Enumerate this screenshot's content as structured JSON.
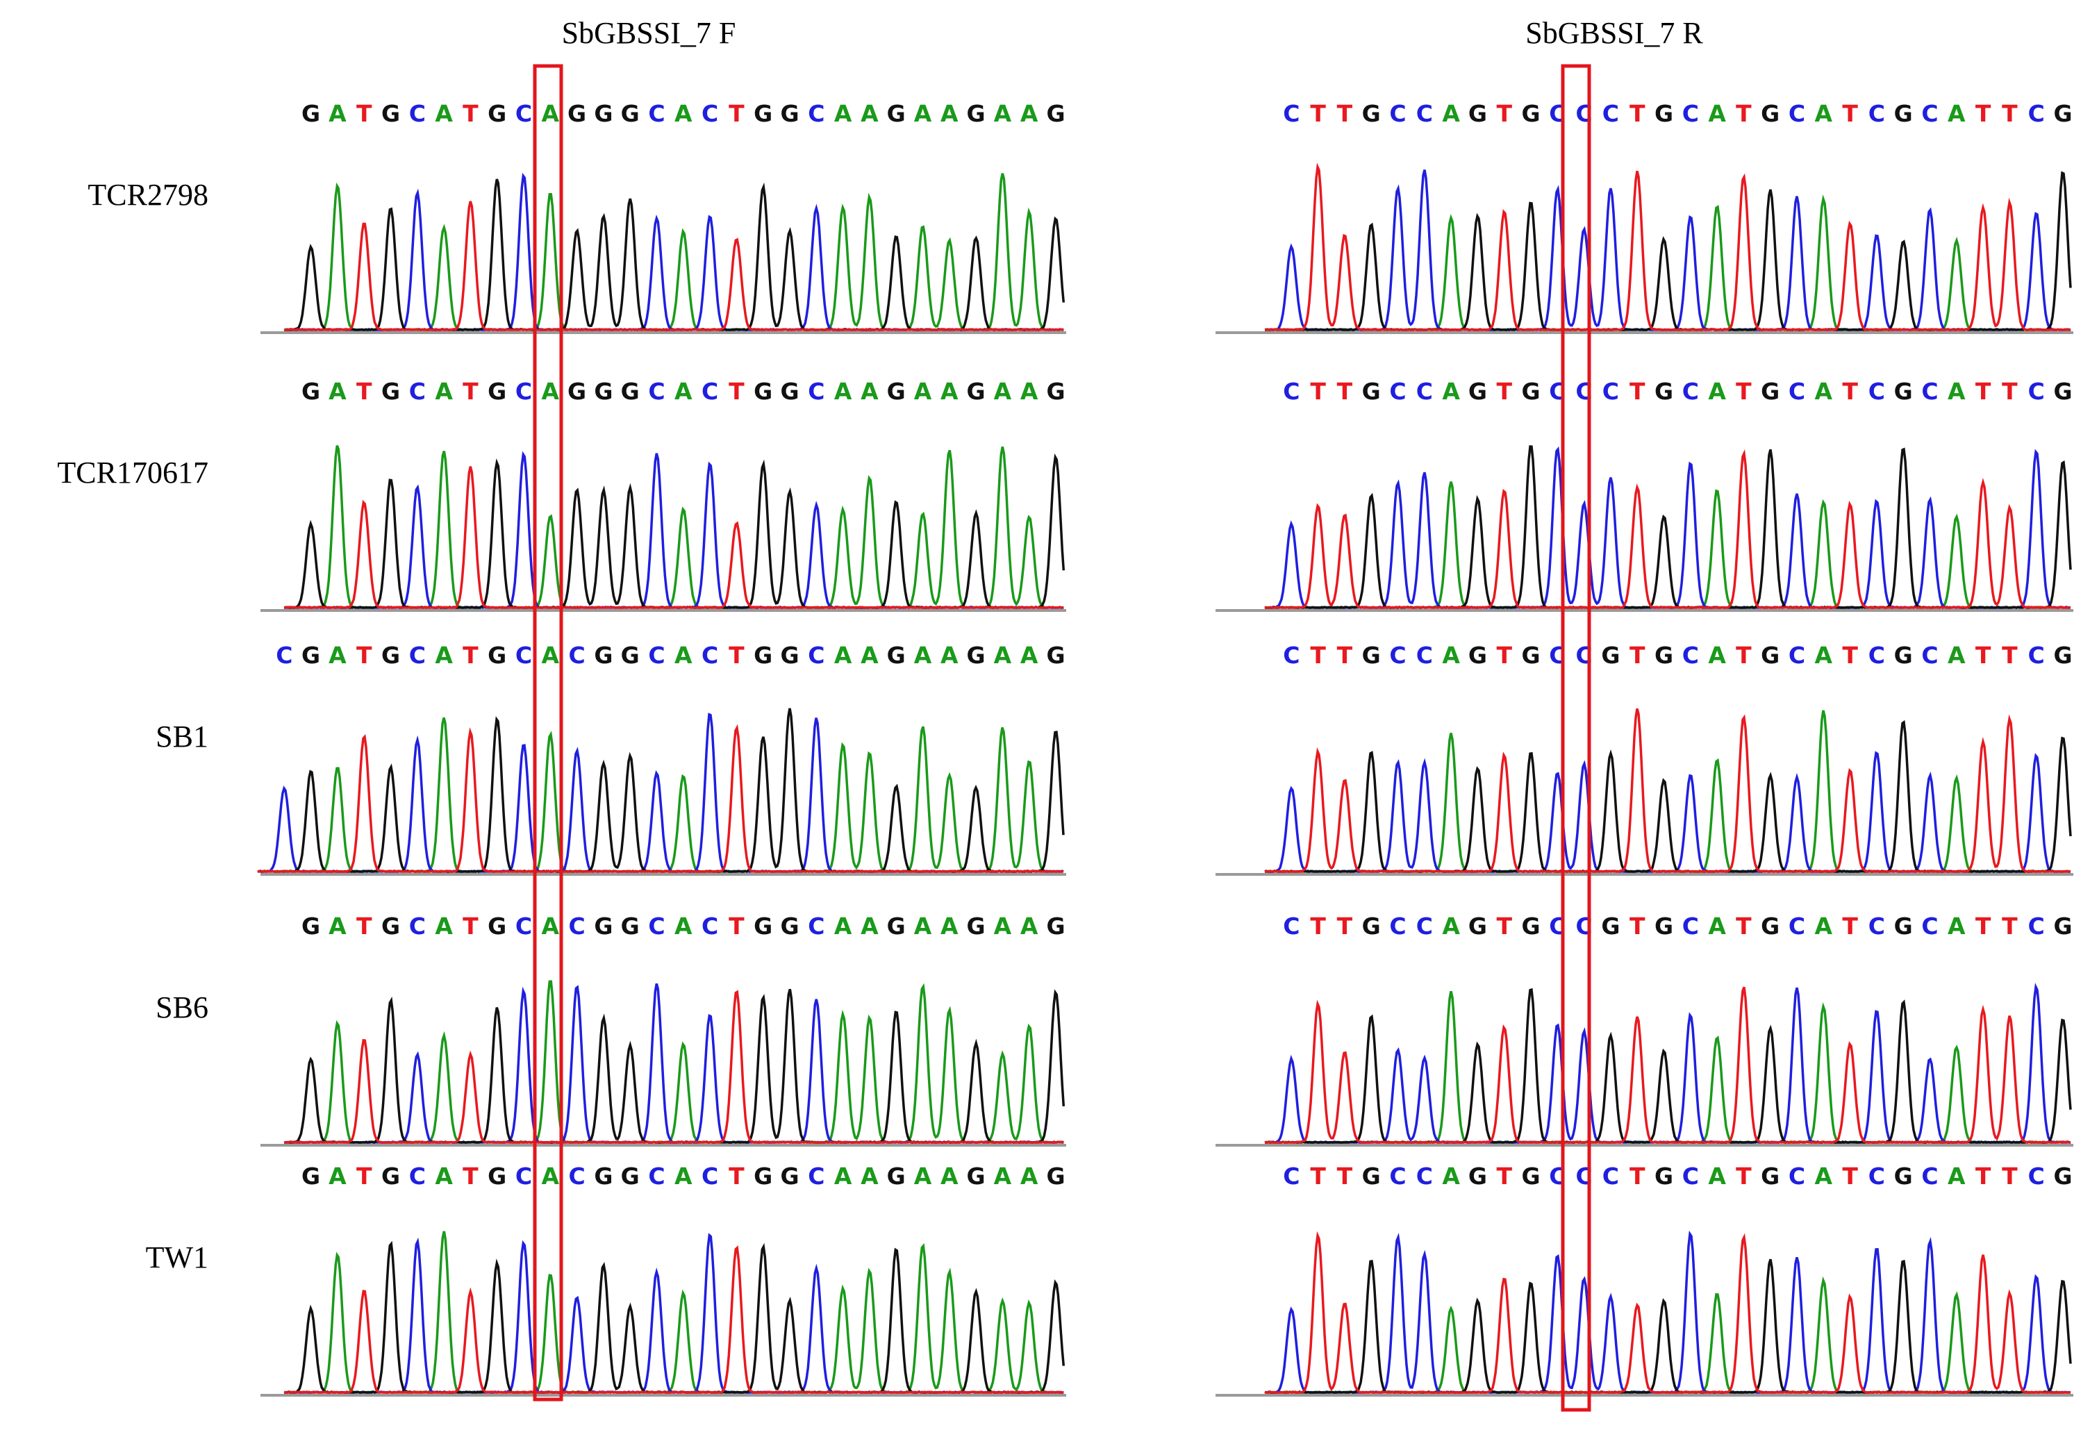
{
  "column_titles": [
    "SbGBSSI_7 F",
    "SbGBSSI_7 R"
  ],
  "base_colors": {
    "A": "#1a9a1a",
    "C": "#1f1fe0",
    "G": "#111111",
    "T": "#e8191f"
  },
  "highlight_color": "#e3161c",
  "samples": [
    {
      "label": "TCR2798",
      "forward": {
        "sequence": "GATGCATGCAGGGCACTGGCAAGAAGAAG"
      },
      "reverse": {
        "sequence": "CTTGCCAGTGCCCTGCATGCATCGCATTCG"
      }
    },
    {
      "label": "TCR170617",
      "forward": {
        "sequence": "GATGCATGCAGGGCACTGGCAAGAAGAAG"
      },
      "reverse": {
        "sequence": "CTTGCCAGTGCCCTGCATGCATCGCATTCG"
      }
    },
    {
      "label": "SB1",
      "forward": {
        "sequence": "CGATGCATGCACGGCACTGGCAAGAAGAAG"
      },
      "reverse": {
        "sequence": "CTTGCCAGTGCCGTGCATGCATCGCATTCG"
      }
    },
    {
      "label": "SB6",
      "forward": {
        "sequence": "GATGCATGCACGGCACTGGCAAGAAGAAG"
      },
      "reverse": {
        "sequence": "CTTGCCAGTGCCGTGCATGCATCGCATTCG"
      }
    },
    {
      "label": "TW1",
      "forward": {
        "sequence": "GATGCATGCACGGCACTGGCAAGAAGAAG"
      },
      "reverse": {
        "sequence": "CTTGCCAGTGCCCTGCATGCATCGCATTCG"
      }
    }
  ]
}
